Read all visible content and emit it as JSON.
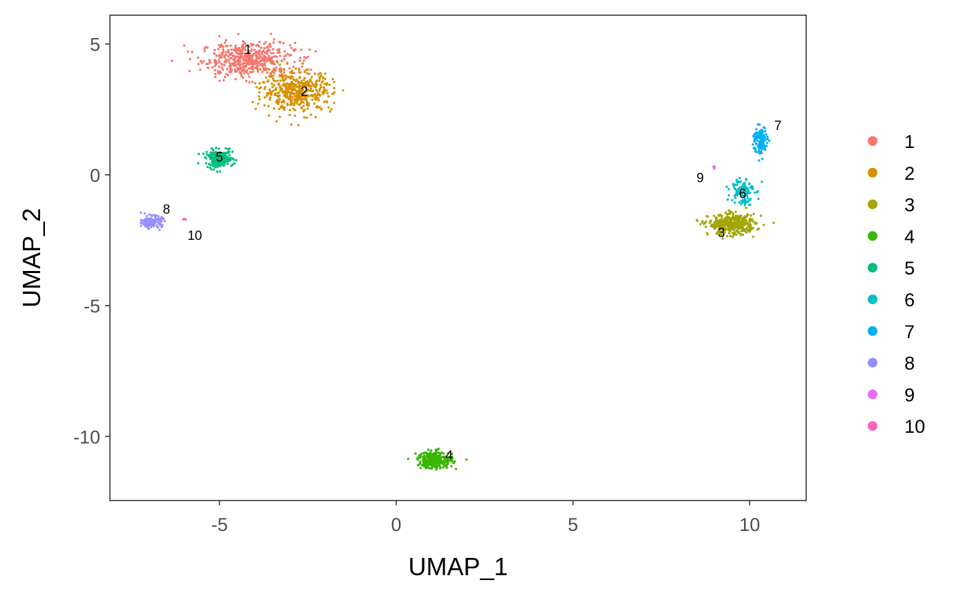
{
  "chart_data": {
    "type": "scatter",
    "title": "",
    "xlabel": "UMAP_1",
    "ylabel": "UMAP_2",
    "xlim": [
      -8.1,
      11.6
    ],
    "ylim": [
      -12.45,
      6.1
    ],
    "x_ticks": [
      -5,
      0,
      5,
      10
    ],
    "y_ticks": [
      5,
      0,
      -5,
      -10
    ],
    "x_tick_labels": [
      "-5",
      "0",
      "5",
      "10"
    ],
    "y_tick_labels": [
      "5",
      "0",
      "-5",
      "-10"
    ],
    "grid": false,
    "legend_position": "right",
    "series": [
      {
        "name": "1",
        "color": "#F8766D",
        "center": [
          -4.2,
          4.4
        ],
        "spread": [
          1.2,
          0.6
        ],
        "count": 500,
        "label_at": [
          -4.2,
          4.8
        ]
      },
      {
        "name": "2",
        "color": "#D89000",
        "center": [
          -2.8,
          3.2
        ],
        "spread": [
          0.9,
          0.7
        ],
        "count": 480,
        "label_at": [
          -2.6,
          3.2
        ]
      },
      {
        "name": "3",
        "color": "#A3A500",
        "center": [
          9.5,
          -1.9
        ],
        "spread": [
          0.6,
          0.35
        ],
        "count": 400,
        "label_at": [
          9.2,
          -2.2
        ]
      },
      {
        "name": "4",
        "color": "#39B600",
        "center": [
          1.1,
          -10.9
        ],
        "spread": [
          0.45,
          0.3
        ],
        "count": 280,
        "label_at": [
          1.5,
          -10.7
        ]
      },
      {
        "name": "5",
        "color": "#00BF7D",
        "center": [
          -5.0,
          0.6
        ],
        "spread": [
          0.35,
          0.3
        ],
        "count": 220,
        "label_at": [
          -5.0,
          0.7
        ]
      },
      {
        "name": "6",
        "color": "#00BFC4",
        "center": [
          9.8,
          -0.6
        ],
        "spread": [
          0.3,
          0.5
        ],
        "count": 110,
        "label_at": [
          9.8,
          -0.7
        ]
      },
      {
        "name": "7",
        "color": "#00B0F6",
        "center": [
          10.3,
          1.3
        ],
        "spread": [
          0.18,
          0.5
        ],
        "count": 130,
        "label_at": [
          10.8,
          1.9
        ]
      },
      {
        "name": "8",
        "color": "#9590FF",
        "center": [
          -6.9,
          -1.8
        ],
        "spread": [
          0.25,
          0.2
        ],
        "count": 150,
        "label_at": [
          -6.5,
          -1.3
        ]
      },
      {
        "name": "9",
        "color": "#E76BF3",
        "center": [
          9.0,
          0.3
        ],
        "spread": [
          0.02,
          0.05
        ],
        "count": 5,
        "label_at": [
          8.6,
          -0.1
        ]
      },
      {
        "name": "10",
        "color": "#FF62BC",
        "center": [
          -6.0,
          -1.7
        ],
        "spread": [
          0.05,
          0.04
        ],
        "count": 4,
        "label_at": [
          -5.7,
          -2.3
        ]
      }
    ]
  }
}
